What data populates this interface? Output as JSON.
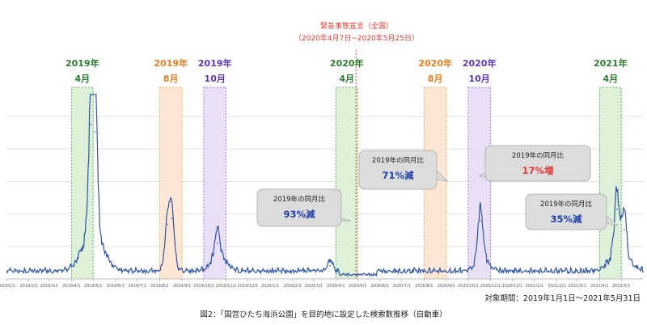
{
  "chart_data": {
    "type": "line",
    "title": "",
    "xlabel": "",
    "ylabel": "",
    "grid": true,
    "x_ticks": [
      "2019/1/1",
      "2019/2/1",
      "2019/3/1",
      "2019/4/1",
      "2019/5/1",
      "2019/6/1",
      "2019/7/1",
      "2019/8/1",
      "2019/9/1",
      "2019/10/1",
      "2019/11/1",
      "2019/12/1",
      "2020/1/1",
      "2020/2/1",
      "2020/3/1",
      "2020/4/1",
      "2020/5/1",
      "2020/6/1",
      "2020/7/1",
      "2020/8/1",
      "2020/9/1",
      "2020/10/1",
      "2020/11/1",
      "2020/12/1",
      "2021/1/1",
      "2021/2/1",
      "2021/3/1",
      "2021/4/1",
      "2021/5/1"
    ],
    "x_range": [
      "2019/1/1",
      "2021/5/31"
    ],
    "peaks": [
      {
        "x": "2019/4/28",
        "y": 0.82
      },
      {
        "x": "2019/5/4",
        "y": 0.78
      },
      {
        "x": "2019/8/12",
        "y": 0.29
      },
      {
        "x": "2019/8/18",
        "y": 0.32
      },
      {
        "x": "2019/10/20",
        "y": 0.19
      },
      {
        "x": "2020/3/24",
        "y": 0.07
      },
      {
        "x": "2020/10/18",
        "y": 0.31
      },
      {
        "x": "2021/4/25",
        "y": 0.37
      },
      {
        "x": "2021/5/5",
        "y": 0.26
      }
    ],
    "highlights": [
      {
        "year": "2019年",
        "month": "4月",
        "color": "#4caf50",
        "fill": "#d6efd1",
        "text_color": "#2e7d32",
        "start": "2019/4/1",
        "end": "2019/5/1"
      },
      {
        "year": "2019年",
        "month": "8月",
        "color": "#f4a460",
        "fill": "#fde3cc",
        "text_color": "#e67e22",
        "start": "2019/8/1",
        "end": "2019/9/1"
      },
      {
        "year": "2019年",
        "month": "10月",
        "color": "#9c7bd1",
        "fill": "#e5dbf5",
        "text_color": "#5e35b1",
        "start": "2019/10/1",
        "end": "2019/11/1"
      },
      {
        "year": "2020年",
        "month": "4月",
        "color": "#4caf50",
        "fill": "#d6efd1",
        "text_color": "#2e7d32",
        "start": "2020/4/1",
        "end": "2020/5/1"
      },
      {
        "year": "2020年",
        "month": "8月",
        "color": "#f4a460",
        "fill": "#fde3cc",
        "text_color": "#e67e22",
        "start": "2020/8/1",
        "end": "2020/9/1"
      },
      {
        "year": "2020年",
        "month": "10月",
        "color": "#9c7bd1",
        "fill": "#e5dbf5",
        "text_color": "#5e35b1",
        "start": "2020/10/1",
        "end": "2020/11/1"
      },
      {
        "year": "2021年",
        "month": "4月",
        "color": "#4caf50",
        "fill": "#d6efd1",
        "text_color": "#2e7d32",
        "start": "2021/4/1",
        "end": "2021/5/1"
      }
    ],
    "emergency": {
      "title": "緊急事態宣言（全国）",
      "period": "（2020年4月7日~2020年5月25日）",
      "date": "2020/5/1",
      "color": "#e53935"
    },
    "callouts": [
      {
        "label": "2019年の同月比",
        "value": "93%減",
        "value_color": "#1f3fa8"
      },
      {
        "label": "2019年の同月比",
        "value": "71%減",
        "value_color": "#1f3fa8"
      },
      {
        "label": "2019年の同月比",
        "value": "17%増",
        "value_color": "#e53935"
      },
      {
        "label": "2019年の同月比",
        "value": "35%減",
        "value_color": "#1f3fa8"
      }
    ],
    "line_color": "#2f55a4",
    "period_note": "対象期間：2019年1月1日～2021年5月31日",
    "caption": "図2：「国営ひたち海浜公園」を目的地に設定した検索数推移（自動車）"
  }
}
